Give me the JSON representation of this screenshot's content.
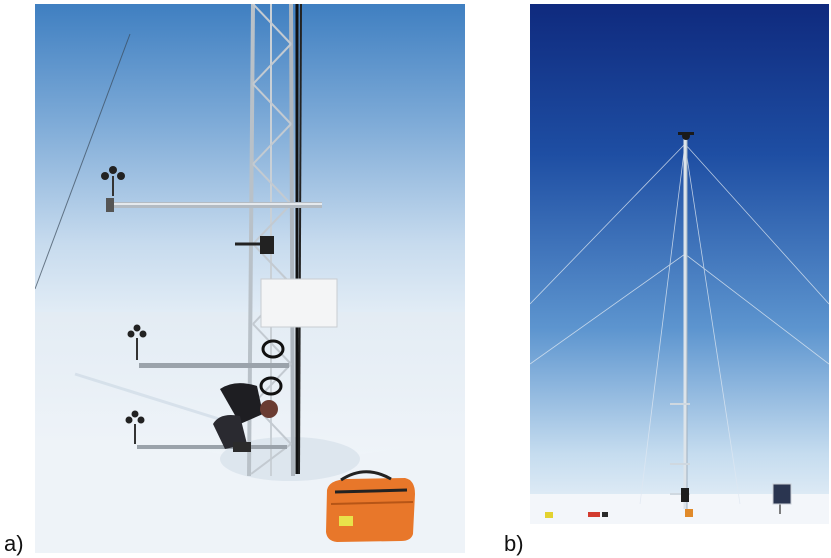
{
  "figure": {
    "panels": [
      {
        "label": "a)",
        "subject": "mast-closeup-photo"
      },
      {
        "label": "b)",
        "subject": "full-mast-photo"
      }
    ],
    "colors": {
      "sky_a_top": "#3f7fc1",
      "sky_a_bottom": "#d9e7f2",
      "sky_b_top": "#0f2a7e",
      "sky_b_bottom": "#dbe9f4",
      "snow": "#f4f7fb",
      "bag": "#e8772a"
    }
  }
}
